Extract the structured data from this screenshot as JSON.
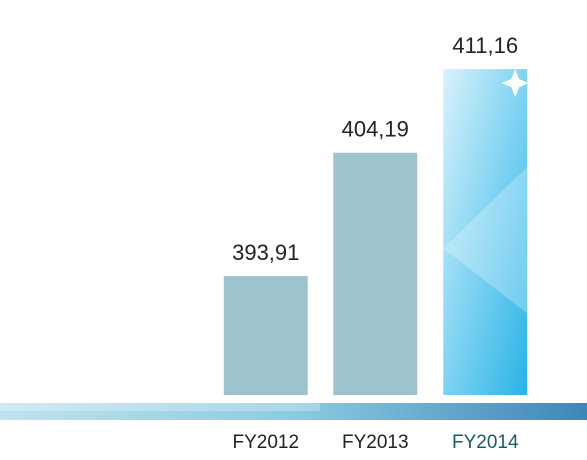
{
  "chart_data": {
    "type": "bar",
    "categories": [
      "FY2012",
      "FY2013",
      "FY2014"
    ],
    "values": [
      393.91,
      404.19,
      411.16
    ],
    "value_labels": [
      "393,91",
      "404,19",
      "411,16"
    ],
    "colors": [
      "#9fc3cd",
      "#9fc3cd",
      "#4fc3ea"
    ],
    "ylim": [
      384,
      412
    ]
  }
}
